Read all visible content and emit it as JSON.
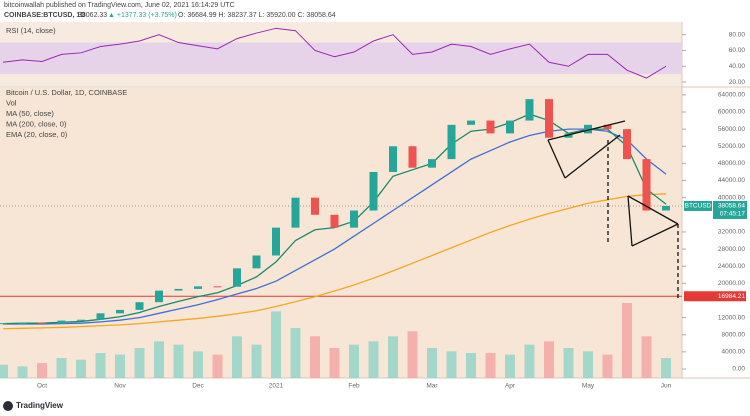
{
  "header": {
    "author": "bitcoinwallah published on TradingView.com, June 02, 2021 16:14:29 UTC",
    "symbol": "COINBASE:BTCUSD, 1D",
    "last": "38062.33",
    "change": "▲ +1377.33 (+3.75%)",
    "ohlc": "O: 36684.99  H: 38237.37  L: 35920.00  C: 38058.64"
  },
  "footer": {
    "brand": "TradingView"
  },
  "chart_data": [
    {
      "type": "candlestick",
      "categories": [
        null,
        null,
        "Oct",
        null,
        null,
        null,
        "Nov",
        null,
        null,
        null,
        "Dec",
        null,
        null,
        null,
        "2021",
        null,
        null,
        null,
        "Feb",
        null,
        null,
        null,
        "Mar",
        null,
        null,
        null,
        "Apr",
        null,
        null,
        null,
        "May",
        null,
        null,
        null,
        "Jun"
      ],
      "series": [
        {
          "name": "Bitcoin / U.S. Dollar, 1D, COINBASE",
          "up_color": "#26a69a",
          "down_color": "#ef5350",
          "values": [
            10700,
            10800,
            10600,
            11300,
            11500,
            13000,
            13800,
            15600,
            18300,
            18700,
            19300,
            19200,
            23500,
            26500,
            33000,
            40000,
            36000,
            33000,
            37000,
            46000,
            52000,
            47000,
            49000,
            57000,
            58000,
            55000,
            58000,
            63000,
            54000,
            55000,
            57000,
            56000,
            49000,
            37000,
            38058.64
          ]
        },
        {
          "name": "Vol",
          "up_color": "#8fd3c9",
          "down_color": "#f2a3a1",
          "values": [
            8000,
            7000,
            9000,
            12000,
            11000,
            15000,
            14000,
            18000,
            22000,
            20000,
            16000,
            14000,
            25000,
            20000,
            40000,
            30000,
            25000,
            18000,
            20000,
            22000,
            25000,
            28000,
            18000,
            16000,
            15000,
            15000,
            14000,
            20000,
            22000,
            18000,
            16000,
            14000,
            45000,
            25000,
            12000
          ]
        },
        {
          "name": "MA (50, close)",
          "color": "#3f6fd8",
          "values": [
            10500,
            10500,
            10500,
            10600,
            10700,
            11000,
            11400,
            12000,
            13000,
            14000,
            15000,
            16200,
            17500,
            18800,
            20500,
            23000,
            25500,
            28000,
            31000,
            34000,
            37000,
            40000,
            43000,
            46000,
            49000,
            51000,
            53000,
            54500,
            55500,
            56000,
            56000,
            55500,
            53500,
            49000,
            45500
          ]
        },
        {
          "name": "MA (200, close, 0)",
          "color": "#f5a623",
          "values": [
            9400,
            9500,
            9600,
            9700,
            9900,
            10100,
            10300,
            10600,
            11000,
            11400,
            11800,
            12300,
            12900,
            13600,
            14600,
            15700,
            16900,
            18200,
            19600,
            21200,
            22900,
            24700,
            26500,
            28300,
            30100,
            31900,
            33500,
            35000,
            36300,
            37500,
            38700,
            39500,
            40300,
            40700,
            40900
          ]
        },
        {
          "name": "EMA (20, close, 0)",
          "color": "#1b8a6b",
          "values": [
            10600,
            10700,
            10700,
            10900,
            11100,
            11600,
            12200,
            13200,
            14600,
            15800,
            16900,
            17800,
            19500,
            21500,
            25000,
            30000,
            32500,
            33000,
            34500,
            39000,
            45000,
            46500,
            48000,
            52500,
            55500,
            56000,
            57500,
            59500,
            58000,
            55000,
            56000,
            56000,
            52000,
            42000,
            38500
          ]
        }
      ],
      "ylim": [
        -2100,
        65600
      ],
      "yticks": [
        {
          "value": 64000,
          "label": "64000.00"
        },
        {
          "value": 60000,
          "label": "60000.00"
        },
        {
          "value": 56000,
          "label": "56000.00"
        },
        {
          "value": 52000,
          "label": "52000.00"
        },
        {
          "value": 48000,
          "label": "48000.00"
        },
        {
          "value": 44000,
          "label": "44000.00"
        },
        {
          "value": 40000,
          "label": "40000.00"
        },
        {
          "value": 32000,
          "label": "32000.00"
        },
        {
          "value": 28000,
          "label": "28000.00"
        },
        {
          "value": 24000,
          "label": "24000.00"
        },
        {
          "value": 20000,
          "label": "20000.00"
        },
        {
          "value": 12000,
          "label": "12000.00"
        },
        {
          "value": 8000,
          "label": "8000.00"
        },
        {
          "value": 4000,
          "label": "4000.00"
        },
        {
          "value": 0,
          "label": "0.00"
        }
      ],
      "last_price": 38058.64,
      "last_symbol": "BTCUSD",
      "countdown": "07:45:17",
      "support": 16984.21,
      "support_color": "#e53935"
    },
    {
      "type": "line",
      "title": "RSI (14, close)",
      "color": "#9c27b0",
      "values": [
        45,
        48,
        46,
        55,
        57,
        65,
        68,
        72,
        80,
        70,
        66,
        62,
        75,
        82,
        88,
        85,
        60,
        52,
        58,
        72,
        80,
        55,
        58,
        68,
        65,
        55,
        62,
        68,
        45,
        40,
        55,
        55,
        35,
        25,
        40
      ],
      "ylim": [
        15,
        96
      ],
      "band": [
        30,
        70
      ],
      "yticks": [
        {
          "value": 80,
          "label": "80.00"
        },
        {
          "value": 60,
          "label": "60.00"
        },
        {
          "value": 40,
          "label": "40.00"
        },
        {
          "value": 20,
          "label": "20.00"
        }
      ]
    }
  ]
}
